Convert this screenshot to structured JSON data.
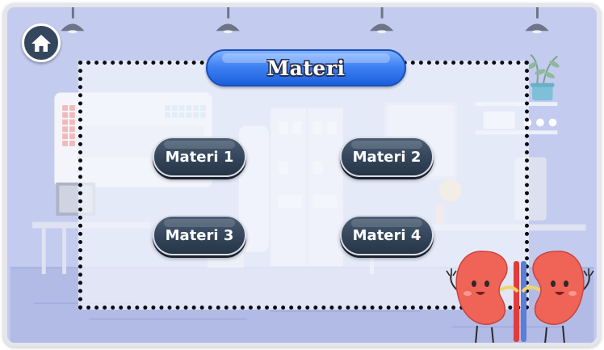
{
  "header": {
    "title": "Materi"
  },
  "home": {
    "icon": "home-icon"
  },
  "menu": {
    "buttons": [
      {
        "label": "Materi 1"
      },
      {
        "label": "Materi 2"
      },
      {
        "label": "Materi 3"
      },
      {
        "label": "Materi 4"
      }
    ]
  },
  "colors": {
    "title_pill": "#3f82f3",
    "menu_button": "#34455a",
    "background": "#c3cbef",
    "panel_border": "#0c0c12",
    "mascot": "#f06458"
  }
}
